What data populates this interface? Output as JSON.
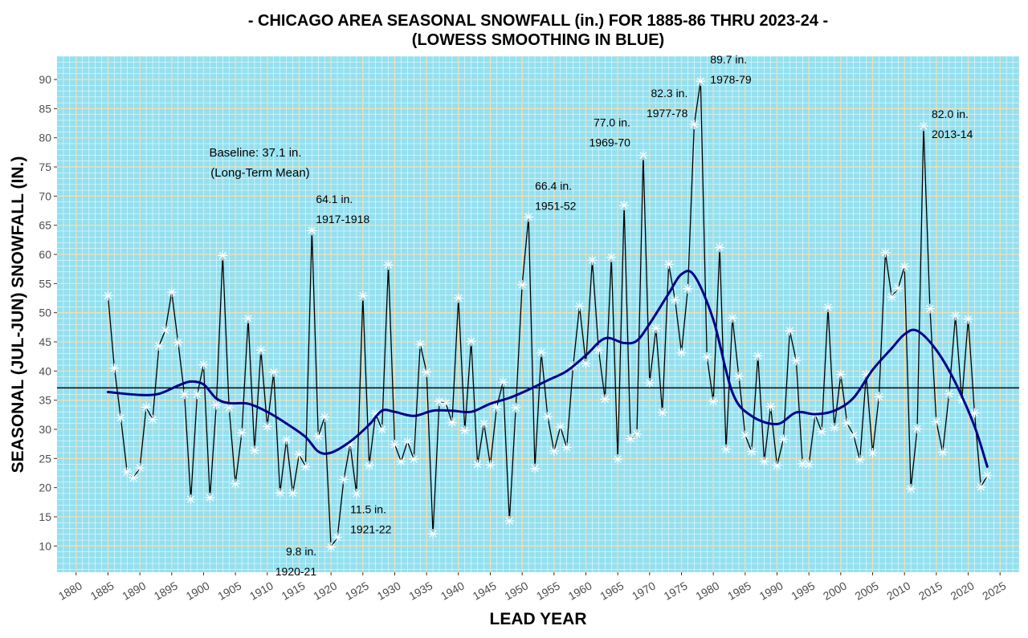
{
  "chart_data": {
    "type": "line",
    "title": "- CHICAGO AREA SEASONAL SNOWFALL (in.) FOR 1885-86 THRU 2023-24 -",
    "subtitle": "(LOWESS SMOOTHING IN BLUE)",
    "xlabel": "LEAD YEAR",
    "ylabel": "SEASONAL (JUL-JUN) SNOWFALL (IN.)",
    "xlim": [
      1877,
      2028
    ],
    "ylim": [
      5.5,
      94
    ],
    "x_ticks": [
      1880,
      1885,
      1890,
      1895,
      1900,
      1905,
      1910,
      1915,
      1920,
      1925,
      1930,
      1935,
      1940,
      1945,
      1950,
      1955,
      1960,
      1965,
      1970,
      1975,
      1980,
      1985,
      1990,
      1995,
      2000,
      2005,
      2010,
      2015,
      2020,
      2025
    ],
    "y_ticks": [
      10,
      15,
      20,
      25,
      30,
      35,
      40,
      45,
      50,
      55,
      60,
      65,
      70,
      75,
      80,
      85,
      90
    ],
    "grid": true,
    "colors": {
      "panel": "#94e0ef",
      "grid": "#f5deb3",
      "grid_minor": "#ffffff",
      "line": "#000000",
      "smooth": "#00008b",
      "marker": "#ffffff"
    },
    "baseline": {
      "value": 37.1,
      "label_line1": "Baseline: 37.1 in.",
      "label_line2": "(Long-Term Mean)"
    },
    "series": [
      {
        "kind": "observed",
        "x": [
          1885,
          1886,
          1887,
          1888,
          1889,
          1890,
          1891,
          1892,
          1893,
          1894,
          1895,
          1896,
          1897,
          1898,
          1899,
          1900,
          1901,
          1902,
          1903,
          1904,
          1905,
          1906,
          1907,
          1908,
          1909,
          1910,
          1911,
          1912,
          1913,
          1914,
          1915,
          1916,
          1917,
          1918,
          1919,
          1920,
          1921,
          1922,
          1923,
          1924,
          1925,
          1926,
          1927,
          1928,
          1929,
          1930,
          1931,
          1932,
          1933,
          1934,
          1935,
          1936,
          1937,
          1938,
          1939,
          1940,
          1941,
          1942,
          1943,
          1944,
          1945,
          1946,
          1947,
          1948,
          1949,
          1950,
          1951,
          1952,
          1953,
          1954,
          1955,
          1956,
          1957,
          1958,
          1959,
          1960,
          1961,
          1962,
          1963,
          1964,
          1965,
          1966,
          1967,
          1968,
          1969,
          1970,
          1971,
          1972,
          1973,
          1974,
          1975,
          1976,
          1977,
          1978,
          1979,
          1980,
          1981,
          1982,
          1983,
          1984,
          1985,
          1986,
          1987,
          1988,
          1989,
          1990,
          1991,
          1992,
          1993,
          1994,
          1995,
          1996,
          1997,
          1998,
          1999,
          2000,
          2001,
          2002,
          2003,
          2004,
          2005,
          2006,
          2007,
          2008,
          2009,
          2010,
          2011,
          2012,
          2013,
          2014,
          2015,
          2016,
          2017,
          2018,
          2019,
          2020,
          2021,
          2022,
          2023
        ],
        "values": [
          52.9,
          40.5,
          32.0,
          22.7,
          21.7,
          23.4,
          33.8,
          31.7,
          44.3,
          47.0,
          53.5,
          44.9,
          36.0,
          18.0,
          36.0,
          41.1,
          18.3,
          34.2,
          59.8,
          33.7,
          20.7,
          29.4,
          49.0,
          26.4,
          43.6,
          30.5,
          39.8,
          19.1,
          28.2,
          19.1,
          25.7,
          23.6,
          64.1,
          28.8,
          32.1,
          9.8,
          11.5,
          21.4,
          27.4,
          19.0,
          52.9,
          23.8,
          32.7,
          30.0,
          58.2,
          27.4,
          24.5,
          27.9,
          24.9,
          44.6,
          39.8,
          12.1,
          34.8,
          34.5,
          31.2,
          52.5,
          29.8,
          45.1,
          24.0,
          31.0,
          23.9,
          33.8,
          38.1,
          14.3,
          33.7,
          54.8,
          66.4,
          23.3,
          43.2,
          32.2,
          26.3,
          30.4,
          26.9,
          40.9,
          51.1,
          41.3,
          59.0,
          43.6,
          35.2,
          59.5,
          24.9,
          68.4,
          28.4,
          29.2,
          77.0,
          38.0,
          47.3,
          32.9,
          58.3,
          52.2,
          43.2,
          54.1,
          82.3,
          89.7,
          42.4,
          34.8,
          61.2,
          26.6,
          49.1,
          39.1,
          29.0,
          26.2,
          42.6,
          24.5,
          33.9,
          23.8,
          28.3,
          46.9,
          41.8,
          24.1,
          24.0,
          32.5,
          29.6,
          50.9,
          30.3,
          39.4,
          31.1,
          29.0,
          24.8,
          39.4,
          26.0,
          35.6,
          60.3,
          52.7,
          54.2,
          57.9,
          19.8,
          30.1,
          82.0,
          50.7,
          31.3,
          26.1,
          36.1,
          49.5,
          35.0,
          48.9,
          32.8,
          20.1,
          22.1
        ]
      },
      {
        "kind": "lowess",
        "x": [
          1885,
          1890,
          1893,
          1896,
          1898,
          1900,
          1902,
          1904,
          1907,
          1910,
          1913,
          1916,
          1918,
          1920,
          1923,
          1926,
          1928,
          1930,
          1933,
          1936,
          1939,
          1942,
          1945,
          1948,
          1951,
          1954,
          1957,
          1960,
          1963,
          1966,
          1968,
          1970,
          1973,
          1975,
          1977,
          1980,
          1983,
          1986,
          1990,
          1993,
          1996,
          1999,
          2002,
          2005,
          2008,
          2010,
          2012,
          2015,
          2018,
          2021,
          2023
        ],
        "values": [
          36.4,
          35.9,
          36.1,
          37.5,
          38.2,
          37.7,
          35.3,
          34.5,
          34.4,
          33.0,
          31.0,
          28.7,
          26.2,
          26.0,
          27.9,
          30.8,
          33.2,
          33.0,
          32.3,
          33.2,
          33.2,
          33.0,
          34.4,
          35.4,
          36.8,
          38.4,
          40.0,
          42.7,
          45.6,
          44.8,
          45.2,
          48.1,
          53.3,
          56.6,
          56.4,
          48.8,
          36.3,
          32.3,
          30.9,
          32.9,
          32.6,
          33.2,
          35.4,
          40.2,
          43.9,
          46.3,
          46.9,
          43.6,
          38.0,
          30.5,
          23.6
        ]
      }
    ],
    "annotations": [
      {
        "x": 1917,
        "y": 64.1,
        "line1": "64.1 in.",
        "line2": "1917-1918"
      },
      {
        "x": 1920,
        "y": 9.8,
        "line1": "9.8 in.",
        "line2": "1920-21"
      },
      {
        "x": 1921,
        "y": 11.5,
        "line1": "11.5 in.",
        "line2": "1921-22"
      },
      {
        "x": 1951,
        "y": 66.4,
        "line1": "66.4 in.",
        "line2": "1951-52"
      },
      {
        "x": 1969,
        "y": 77.0,
        "line1": "77.0 in.",
        "line2": "1969-70"
      },
      {
        "x": 1977,
        "y": 82.3,
        "line1": "82.3 in.",
        "line2": "1977-78"
      },
      {
        "x": 1978,
        "y": 89.7,
        "line1": "89.7 in.",
        "line2": "1978-79"
      },
      {
        "x": 2013,
        "y": 82.0,
        "line1": "82.0 in.",
        "line2": "2013-14"
      }
    ]
  }
}
